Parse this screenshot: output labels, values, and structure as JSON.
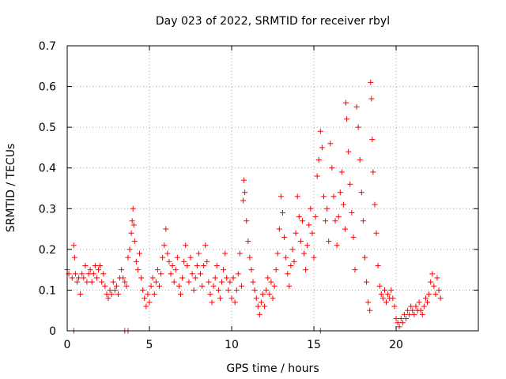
{
  "chart_data": {
    "type": "scatter",
    "title": "Day 023 of 2022, SRMTID for receiver rbyl",
    "xlabel": "GPS time / hours",
    "ylabel": "SRMTID / TECUs",
    "xlim": [
      0,
      25
    ],
    "ylim": [
      0,
      0.7
    ],
    "grid": true,
    "marker": "+",
    "marker_color": "#ff0000",
    "xticks": [
      0,
      5,
      10,
      15,
      20
    ],
    "xtick_labels": [
      "0",
      "5",
      "10",
      "15",
      "20"
    ],
    "yticks": [
      0,
      0.1,
      0.2,
      0.3,
      0.4,
      0.5,
      0.6,
      0.7
    ],
    "ytick_labels": [
      "0",
      "0.1",
      "0.2",
      "0.3",
      "0.4",
      "0.5",
      "0.6",
      "0.7"
    ],
    "series": [
      {
        "name": "SRMTID",
        "points": [
          [
            0.0,
            0.15
          ],
          [
            0.1,
            0.14
          ],
          [
            0.3,
            0.13
          ],
          [
            0.4,
            0.21
          ],
          [
            0.45,
            0.18
          ],
          [
            0.5,
            0.14
          ],
          [
            0.6,
            0.12
          ],
          [
            0.7,
            0.13
          ],
          [
            0.8,
            0.09
          ],
          [
            0.9,
            0.14
          ],
          [
            1.0,
            0.13
          ],
          [
            1.1,
            0.16
          ],
          [
            1.2,
            0.12
          ],
          [
            1.3,
            0.14
          ],
          [
            1.4,
            0.15
          ],
          [
            1.5,
            0.12
          ],
          [
            1.6,
            0.14
          ],
          [
            1.7,
            0.16
          ],
          [
            1.8,
            0.13
          ],
          [
            1.9,
            0.15
          ],
          [
            2.0,
            0.16
          ],
          [
            2.1,
            0.12
          ],
          [
            2.2,
            0.14
          ],
          [
            2.3,
            0.11
          ],
          [
            2.4,
            0.09
          ],
          [
            2.5,
            0.08
          ],
          [
            2.6,
            0.1
          ],
          [
            2.7,
            0.09
          ],
          [
            2.8,
            0.12
          ],
          [
            2.9,
            0.1
          ],
          [
            3.0,
            0.11
          ],
          [
            3.1,
            0.09
          ],
          [
            3.2,
            0.13
          ],
          [
            3.3,
            0.15
          ],
          [
            3.4,
            0.13
          ],
          [
            3.5,
            0.12
          ],
          [
            3.6,
            0.11
          ],
          [
            3.7,
            0.18
          ],
          [
            3.8,
            0.2
          ],
          [
            3.9,
            0.24
          ],
          [
            3.95,
            0.27
          ],
          [
            4.0,
            0.3
          ],
          [
            4.05,
            0.26
          ],
          [
            4.1,
            0.22
          ],
          [
            4.2,
            0.17
          ],
          [
            4.3,
            0.15
          ],
          [
            4.4,
            0.19
          ],
          [
            4.5,
            0.13
          ],
          [
            4.6,
            0.1
          ],
          [
            4.7,
            0.08
          ],
          [
            4.8,
            0.06
          ],
          [
            4.9,
            0.09
          ],
          [
            5.0,
            0.07
          ],
          [
            5.1,
            0.11
          ],
          [
            5.2,
            0.13
          ],
          [
            5.3,
            0.09
          ],
          [
            5.4,
            0.12
          ],
          [
            5.5,
            0.15
          ],
          [
            5.6,
            0.11
          ],
          [
            5.7,
            0.14
          ],
          [
            5.8,
            0.18
          ],
          [
            5.9,
            0.21
          ],
          [
            6.0,
            0.25
          ],
          [
            6.1,
            0.19
          ],
          [
            6.2,
            0.17
          ],
          [
            6.3,
            0.14
          ],
          [
            6.4,
            0.16
          ],
          [
            6.5,
            0.12
          ],
          [
            6.6,
            0.15
          ],
          [
            6.7,
            0.18
          ],
          [
            6.8,
            0.11
          ],
          [
            6.9,
            0.09
          ],
          [
            7.0,
            0.13
          ],
          [
            7.1,
            0.17
          ],
          [
            7.2,
            0.21
          ],
          [
            7.3,
            0.16
          ],
          [
            7.4,
            0.12
          ],
          [
            7.5,
            0.18
          ],
          [
            7.6,
            0.14
          ],
          [
            7.7,
            0.1
          ],
          [
            7.8,
            0.13
          ],
          [
            7.9,
            0.16
          ],
          [
            8.0,
            0.19
          ],
          [
            8.1,
            0.14
          ],
          [
            8.2,
            0.11
          ],
          [
            8.3,
            0.16
          ],
          [
            8.4,
            0.21
          ],
          [
            8.5,
            0.17
          ],
          [
            8.6,
            0.12
          ],
          [
            8.7,
            0.09
          ],
          [
            8.8,
            0.07
          ],
          [
            8.9,
            0.11
          ],
          [
            9.0,
            0.13
          ],
          [
            9.1,
            0.16
          ],
          [
            9.2,
            0.1
          ],
          [
            9.3,
            0.08
          ],
          [
            9.4,
            0.12
          ],
          [
            9.5,
            0.15
          ],
          [
            9.6,
            0.19
          ],
          [
            9.7,
            0.13
          ],
          [
            9.8,
            0.1
          ],
          [
            9.9,
            0.12
          ],
          [
            10.0,
            0.08
          ],
          [
            10.1,
            0.13
          ],
          [
            10.2,
            0.07
          ],
          [
            10.3,
            0.1
          ],
          [
            10.4,
            0.14
          ],
          [
            10.5,
            0.19
          ],
          [
            10.6,
            0.11
          ],
          [
            10.7,
            0.32
          ],
          [
            10.75,
            0.37
          ],
          [
            10.8,
            0.34
          ],
          [
            10.9,
            0.27
          ],
          [
            11.0,
            0.22
          ],
          [
            11.1,
            0.18
          ],
          [
            11.2,
            0.15
          ],
          [
            11.3,
            0.12
          ],
          [
            11.4,
            0.1
          ],
          [
            11.5,
            0.08
          ],
          [
            11.6,
            0.06
          ],
          [
            11.7,
            0.04
          ],
          [
            11.8,
            0.07
          ],
          [
            11.9,
            0.09
          ],
          [
            12.0,
            0.06
          ],
          [
            12.1,
            0.1
          ],
          [
            12.2,
            0.13
          ],
          [
            12.3,
            0.09
          ],
          [
            12.4,
            0.12
          ],
          [
            12.5,
            0.08
          ],
          [
            12.6,
            0.11
          ],
          [
            12.7,
            0.15
          ],
          [
            12.8,
            0.19
          ],
          [
            12.9,
            0.25
          ],
          [
            13.0,
            0.33
          ],
          [
            13.1,
            0.29
          ],
          [
            13.2,
            0.23
          ],
          [
            13.3,
            0.18
          ],
          [
            13.4,
            0.14
          ],
          [
            13.5,
            0.11
          ],
          [
            13.6,
            0.16
          ],
          [
            13.7,
            0.2
          ],
          [
            13.8,
            0.17
          ],
          [
            13.9,
            0.24
          ],
          [
            14.0,
            0.33
          ],
          [
            14.1,
            0.28
          ],
          [
            14.2,
            0.22
          ],
          [
            14.3,
            0.27
          ],
          [
            14.4,
            0.19
          ],
          [
            14.5,
            0.15
          ],
          [
            14.6,
            0.21
          ],
          [
            14.7,
            0.26
          ],
          [
            14.8,
            0.3
          ],
          [
            14.9,
            0.24
          ],
          [
            15.0,
            0.18
          ],
          [
            15.1,
            0.28
          ],
          [
            15.2,
            0.38
          ],
          [
            15.3,
            0.42
          ],
          [
            15.4,
            0.49
          ],
          [
            15.5,
            0.45
          ],
          [
            15.6,
            0.33
          ],
          [
            15.7,
            0.27
          ],
          [
            15.8,
            0.3
          ],
          [
            15.9,
            0.22
          ],
          [
            16.0,
            0.46
          ],
          [
            16.1,
            0.4
          ],
          [
            16.2,
            0.33
          ],
          [
            16.3,
            0.27
          ],
          [
            16.4,
            0.21
          ],
          [
            16.5,
            0.28
          ],
          [
            16.6,
            0.34
          ],
          [
            16.7,
            0.39
          ],
          [
            16.8,
            0.31
          ],
          [
            16.9,
            0.25
          ],
          [
            16.95,
            0.56
          ],
          [
            17.0,
            0.52
          ],
          [
            17.1,
            0.44
          ],
          [
            17.2,
            0.36
          ],
          [
            17.3,
            0.29
          ],
          [
            17.4,
            0.23
          ],
          [
            17.5,
            0.15
          ],
          [
            17.6,
            0.55
          ],
          [
            17.7,
            0.5
          ],
          [
            17.8,
            0.42
          ],
          [
            17.9,
            0.34
          ],
          [
            18.0,
            0.27
          ],
          [
            18.1,
            0.18
          ],
          [
            18.2,
            0.12
          ],
          [
            18.3,
            0.07
          ],
          [
            18.4,
            0.05
          ],
          [
            18.45,
            0.61
          ],
          [
            18.5,
            0.57
          ],
          [
            18.55,
            0.47
          ],
          [
            18.6,
            0.39
          ],
          [
            18.7,
            0.31
          ],
          [
            18.8,
            0.24
          ],
          [
            18.9,
            0.16
          ],
          [
            19.0,
            0.11
          ],
          [
            19.1,
            0.09
          ],
          [
            19.2,
            0.08
          ],
          [
            19.3,
            0.1
          ],
          [
            19.4,
            0.07
          ],
          [
            19.5,
            0.09
          ],
          [
            19.6,
            0.08
          ],
          [
            19.7,
            0.1
          ],
          [
            19.8,
            0.08
          ],
          [
            19.9,
            0.06
          ],
          [
            20.0,
            0.03
          ],
          [
            20.1,
            0.02
          ],
          [
            20.2,
            0.01
          ],
          [
            20.3,
            0.03
          ],
          [
            20.4,
            0.02
          ],
          [
            20.5,
            0.04
          ],
          [
            20.6,
            0.03
          ],
          [
            20.7,
            0.05
          ],
          [
            20.8,
            0.04
          ],
          [
            20.9,
            0.06
          ],
          [
            21.0,
            0.05
          ],
          [
            21.1,
            0.04
          ],
          [
            21.2,
            0.06
          ],
          [
            21.3,
            0.05
          ],
          [
            21.4,
            0.07
          ],
          [
            21.5,
            0.05
          ],
          [
            21.6,
            0.04
          ],
          [
            21.7,
            0.06
          ],
          [
            21.8,
            0.08
          ],
          [
            21.9,
            0.07
          ],
          [
            22.0,
            0.09
          ],
          [
            22.1,
            0.12
          ],
          [
            22.2,
            0.14
          ],
          [
            22.3,
            0.11
          ],
          [
            22.4,
            0.09
          ],
          [
            22.5,
            0.13
          ],
          [
            22.6,
            0.1
          ],
          [
            22.7,
            0.08
          ],
          [
            0.4,
            0.0
          ],
          [
            3.5,
            0.0
          ],
          [
            3.7,
            0.0
          ],
          [
            15.4,
            0.0
          ]
        ]
      }
    ]
  }
}
